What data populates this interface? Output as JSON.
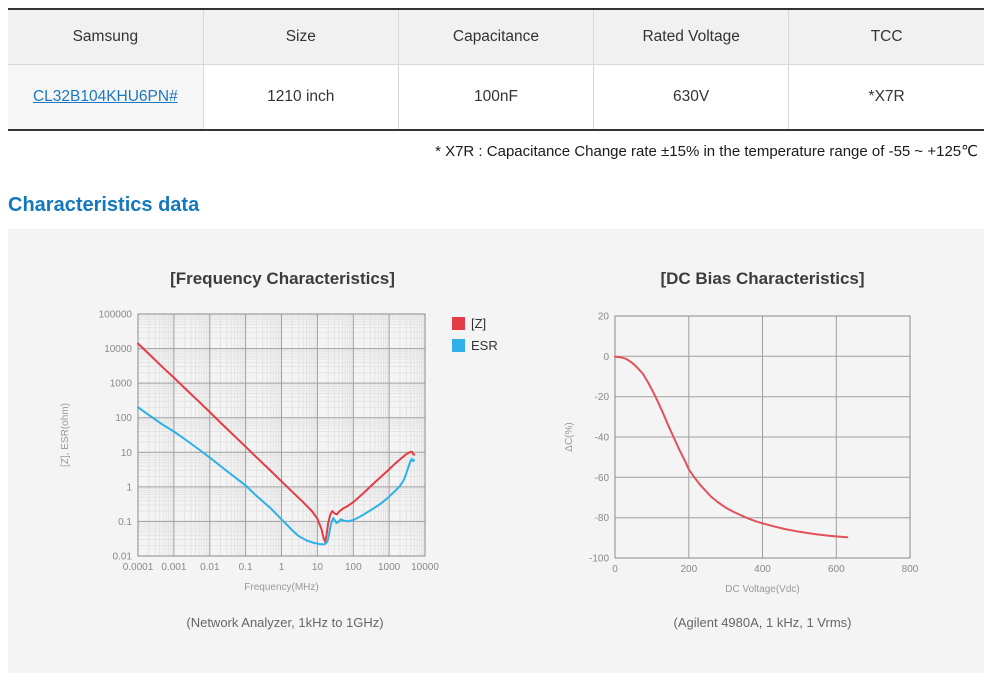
{
  "table": {
    "headers": [
      "Samsung",
      "Size",
      "Capacitance",
      "Rated Voltage",
      "TCC"
    ],
    "row": {
      "part_number": "CL32B104KHU6PN#",
      "size": "1210 inch",
      "capacitance": "100nF",
      "rated_voltage": "630V",
      "tcc": "*X7R"
    }
  },
  "note": "* X7R : Capacitance Change rate ±15%  in the temperature range of -55 ~ +125℃",
  "section": {
    "title": "Characteristics data"
  },
  "colors": {
    "accent_blue": "#1478be",
    "link_blue": "#1b78c2",
    "series_red": "#e23c46",
    "series_blue": "#2fb0e8",
    "panel_bg": "#f4f4f4"
  },
  "chart_data": [
    {
      "type": "line",
      "title": "[Frequency Characteristics]",
      "xlabel": "Frequency(MHz)",
      "ylabel": "[Z], ESR(ohm)",
      "caption": "(Network Analyzer, 1kHz to 1GHz)",
      "x_scale": "log",
      "y_scale": "log",
      "xlim": [
        0.0001,
        10000
      ],
      "ylim": [
        0.01,
        100000
      ],
      "x_ticks": [
        "0.0001",
        "0.001",
        "0.01",
        "0.1",
        "1",
        "10",
        "100",
        "1000",
        "10000"
      ],
      "y_ticks": [
        "100000",
        "10000",
        "1000",
        "100",
        "10",
        "1",
        "0.1",
        "0.01"
      ],
      "grid": "log-minor",
      "legend_position": "right-top",
      "legend": [
        {
          "label": "[Z]",
          "color": "#e23c46"
        },
        {
          "label": "ESR",
          "color": "#2fb0e8"
        }
      ],
      "series": [
        {
          "name": "Z",
          "color": "#e23c46",
          "points": [
            [
              0.0001,
              14000
            ],
            [
              0.0002,
              7000
            ],
            [
              0.0005,
              2800
            ],
            [
              0.001,
              1450
            ],
            [
              0.002,
              720
            ],
            [
              0.005,
              290
            ],
            [
              0.01,
              145
            ],
            [
              0.02,
              72
            ],
            [
              0.05,
              29
            ],
            [
              0.1,
              14.5
            ],
            [
              0.2,
              7.2
            ],
            [
              0.5,
              2.9
            ],
            [
              1,
              1.45
            ],
            [
              2,
              0.72
            ],
            [
              4,
              0.36
            ],
            [
              7,
              0.2
            ],
            [
              10,
              0.12
            ],
            [
              13,
              0.06
            ],
            [
              15,
              0.032
            ],
            [
              16.5,
              0.026
            ],
            [
              18,
              0.04
            ],
            [
              20,
              0.09
            ],
            [
              23,
              0.16
            ],
            [
              26,
              0.2
            ],
            [
              30,
              0.17
            ],
            [
              35,
              0.16
            ],
            [
              40,
              0.19
            ],
            [
              50,
              0.23
            ],
            [
              70,
              0.28
            ],
            [
              100,
              0.36
            ],
            [
              200,
              0.68
            ],
            [
              400,
              1.35
            ],
            [
              700,
              2.3
            ],
            [
              1000,
              3.2
            ],
            [
              1500,
              4.8
            ],
            [
              2000,
              6.2
            ],
            [
              3000,
              8.8
            ],
            [
              4000,
              10.3
            ],
            [
              4400,
              10.2
            ],
            [
              4700,
              8.8
            ],
            [
              5000,
              8.6
            ]
          ]
        },
        {
          "name": "ESR",
          "color": "#2fb0e8",
          "points": [
            [
              0.0001,
              200
            ],
            [
              0.0002,
              120
            ],
            [
              0.0005,
              62
            ],
            [
              0.001,
              40
            ],
            [
              0.002,
              24
            ],
            [
              0.005,
              12
            ],
            [
              0.01,
              7
            ],
            [
              0.02,
              4
            ],
            [
              0.05,
              1.9
            ],
            [
              0.1,
              1.1
            ],
            [
              0.2,
              0.55
            ],
            [
              0.5,
              0.24
            ],
            [
              1,
              0.115
            ],
            [
              1.5,
              0.075
            ],
            [
              2,
              0.055
            ],
            [
              3,
              0.038
            ],
            [
              5,
              0.028
            ],
            [
              8,
              0.024
            ],
            [
              12,
              0.022
            ],
            [
              16,
              0.022
            ],
            [
              19,
              0.026
            ],
            [
              21,
              0.04
            ],
            [
              23,
              0.07
            ],
            [
              25,
              0.1
            ],
            [
              28,
              0.125
            ],
            [
              31,
              0.105
            ],
            [
              34,
              0.09
            ],
            [
              38,
              0.095
            ],
            [
              45,
              0.115
            ],
            [
              55,
              0.105
            ],
            [
              70,
              0.1
            ],
            [
              100,
              0.11
            ],
            [
              150,
              0.135
            ],
            [
              200,
              0.16
            ],
            [
              300,
              0.21
            ],
            [
              500,
              0.29
            ],
            [
              700,
              0.38
            ],
            [
              1000,
              0.52
            ],
            [
              1500,
              0.78
            ],
            [
              2000,
              1.05
            ],
            [
              2500,
              1.5
            ],
            [
              3000,
              2.4
            ],
            [
              3500,
              3.9
            ],
            [
              4000,
              5.8
            ],
            [
              4300,
              6.4
            ],
            [
              4600,
              5.6
            ],
            [
              5000,
              5.9
            ]
          ]
        }
      ]
    },
    {
      "type": "line",
      "title": "[DC Bias Characteristics]",
      "xlabel": "DC Voltage(Vdc)",
      "ylabel": "ΔC(%)",
      "caption": "(Agilent 4980A, 1 kHz, 1 Vrms)",
      "x_scale": "linear",
      "y_scale": "linear",
      "xlim": [
        0,
        800
      ],
      "ylim": [
        -100,
        20
      ],
      "x_ticks": [
        "0",
        "200",
        "400",
        "600",
        "800"
      ],
      "y_ticks": [
        "20",
        "0",
        "-20",
        "-40",
        "-60",
        "-80",
        "-100"
      ],
      "grid": "major-only",
      "legend": null,
      "series": [
        {
          "name": "dC",
          "color": "#e2525a",
          "points": [
            [
              0,
              -0.2
            ],
            [
              15,
              -0.5
            ],
            [
              30,
              -1.2
            ],
            [
              45,
              -3
            ],
            [
              60,
              -5.5
            ],
            [
              75,
              -8.5
            ],
            [
              90,
              -13
            ],
            [
              100,
              -16.5
            ],
            [
              115,
              -22
            ],
            [
              130,
              -28
            ],
            [
              145,
              -34.5
            ],
            [
              160,
              -40.5
            ],
            [
              175,
              -46.5
            ],
            [
              190,
              -52
            ],
            [
              200,
              -56
            ],
            [
              215,
              -60
            ],
            [
              230,
              -63.5
            ],
            [
              245,
              -66.5
            ],
            [
              260,
              -69.5
            ],
            [
              280,
              -72.5
            ],
            [
              300,
              -75
            ],
            [
              320,
              -77
            ],
            [
              340,
              -78.7
            ],
            [
              360,
              -80.3
            ],
            [
              380,
              -81.7
            ],
            [
              400,
              -82.8
            ],
            [
              430,
              -84.3
            ],
            [
              460,
              -85.6
            ],
            [
              500,
              -87
            ],
            [
              540,
              -88.1
            ],
            [
              580,
              -89
            ],
            [
              620,
              -89.6
            ],
            [
              630,
              -89.7
            ]
          ]
        }
      ]
    }
  ]
}
